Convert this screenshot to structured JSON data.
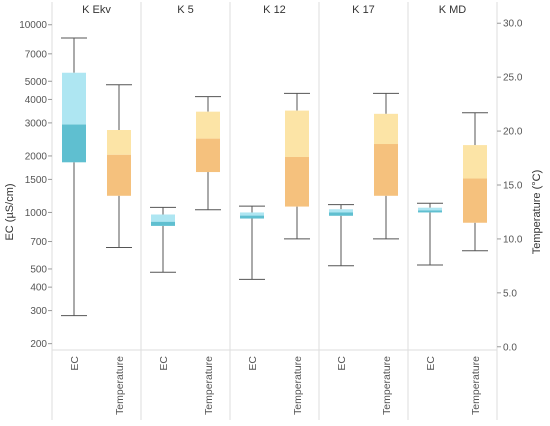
{
  "chart_data": {
    "type": "box",
    "panels": [
      "K Ekv",
      "K 5",
      "K 12",
      "K 17",
      "K MD"
    ],
    "categories": [
      "EC",
      "Temperature"
    ],
    "left_axis": {
      "label": "EC (µS/cm)",
      "scale": "log",
      "ticks": [
        200,
        300,
        400,
        500,
        700,
        1000,
        1500,
        2000,
        3000,
        4000,
        5000,
        7000,
        10000
      ],
      "tick_labels": [
        "200",
        "300",
        "400",
        "500",
        "700",
        "1000",
        "1500",
        "2000",
        "3000",
        "4000",
        "5000",
        "7000",
        "10000"
      ],
      "range": [
        185,
        10600
      ]
    },
    "right_axis": {
      "label": "Temperature (°C)",
      "scale": "linear",
      "ticks": [
        0,
        5,
        10,
        15,
        20,
        25,
        30
      ],
      "tick_labels": [
        "0.0",
        "5.0",
        "10.0",
        "15.0",
        "20.0",
        "25.0",
        "30.0"
      ],
      "range": [
        -0.3,
        30.3
      ]
    },
    "ec_boxes": [
      {
        "panel": "K Ekv",
        "min": 282,
        "q1": 1850,
        "median": 2940,
        "q3": 5550,
        "max": 8500
      },
      {
        "panel": "K 5",
        "min": 480,
        "q1": 848,
        "median": 892,
        "q3": 975,
        "max": 1065
      },
      {
        "panel": "K 12",
        "min": 440,
        "q1": 928,
        "median": 962,
        "q3": 1000,
        "max": 1080
      },
      {
        "panel": "K 17",
        "min": 520,
        "q1": 960,
        "median": 1000,
        "q3": 1040,
        "max": 1100
      },
      {
        "panel": "K MD",
        "min": 525,
        "q1": 1000,
        "median": 1025,
        "q3": 1060,
        "max": 1120
      }
    ],
    "temperature_boxes": [
      {
        "panel": "K Ekv",
        "min": 9.2,
        "q1": 14.0,
        "median": 17.8,
        "q3": 20.1,
        "max": 24.3
      },
      {
        "panel": "K 5",
        "min": 12.7,
        "q1": 16.2,
        "median": 19.3,
        "q3": 21.8,
        "max": 23.2
      },
      {
        "panel": "K 12",
        "min": 10.0,
        "q1": 13.0,
        "median": 17.6,
        "q3": 21.9,
        "max": 23.5
      },
      {
        "panel": "K 17",
        "min": 10.0,
        "q1": 14.0,
        "median": 18.8,
        "q3": 21.6,
        "max": 23.5
      },
      {
        "panel": "K MD",
        "min": 8.9,
        "q1": 11.5,
        "median": 15.6,
        "q3": 18.7,
        "max": 21.7
      }
    ],
    "colors": {
      "ec_upper": "#aee6f2",
      "ec_lower": "#5fbfd0",
      "temp_upper": "#fce4a6",
      "temp_lower": "#f5c17d",
      "whisker": "#555555",
      "panel_divider": "#dedede",
      "grid": "#e3e3e3"
    },
    "grid": false,
    "legend": "none"
  }
}
